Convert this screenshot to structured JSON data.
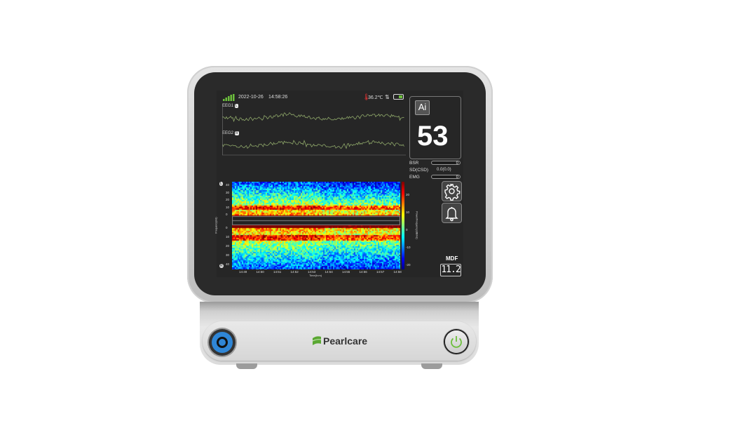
{
  "status": {
    "date": "2022-10-26",
    "time": "14:58:26",
    "temperature": "36.2℃",
    "signal_icon": "signal-bars-icon",
    "battery_icon": "battery-icon"
  },
  "eeg": {
    "channel1": "EEG1",
    "channel2": "EEG2",
    "channel1_badge": "L",
    "channel2_badge": "R",
    "wave_color": "#8fa86a"
  },
  "index": {
    "ai_label": "Ai",
    "value": "53"
  },
  "params": [
    {
      "label": "BSR",
      "value": "0"
    },
    {
      "label": "SD(CSD)",
      "value": "0.0(0.0)"
    },
    {
      "label": "EMG",
      "value": "0"
    }
  ],
  "buttons": {
    "settings_icon": "gear-icon",
    "alarm_icon": "bell-icon"
  },
  "mdf": {
    "label": "MDF",
    "value": "11.2"
  },
  "chart_data": {
    "type": "heatmap",
    "ylabel": "Frequency(Hz)",
    "xlabel": "Time(h:m)",
    "colorbar_label": "Power/Frequency(dB/Hz)",
    "y_ticks_top": [
      "40",
      "30",
      "20",
      "10",
      "0"
    ],
    "y_ticks_bottom": [
      "0",
      "10",
      "20",
      "30",
      "40"
    ],
    "x_ticks": [
      "14:49",
      "14:50",
      "14:51",
      "14:52",
      "14:53",
      "14:54",
      "14:55",
      "14:56",
      "14:57",
      "14:58"
    ],
    "colorbar_ticks": [
      "20",
      "10",
      "0",
      "-10",
      "-20"
    ],
    "colormap": "jet",
    "top_badge": "L",
    "bottom_badge": "R"
  },
  "brand": {
    "name": "Pearlcare",
    "logo_color": "#5aa832"
  },
  "hardware": {
    "connector_color": "#2f86d6",
    "power_icon": "power-icon",
    "power_color": "#6cbf3c"
  }
}
